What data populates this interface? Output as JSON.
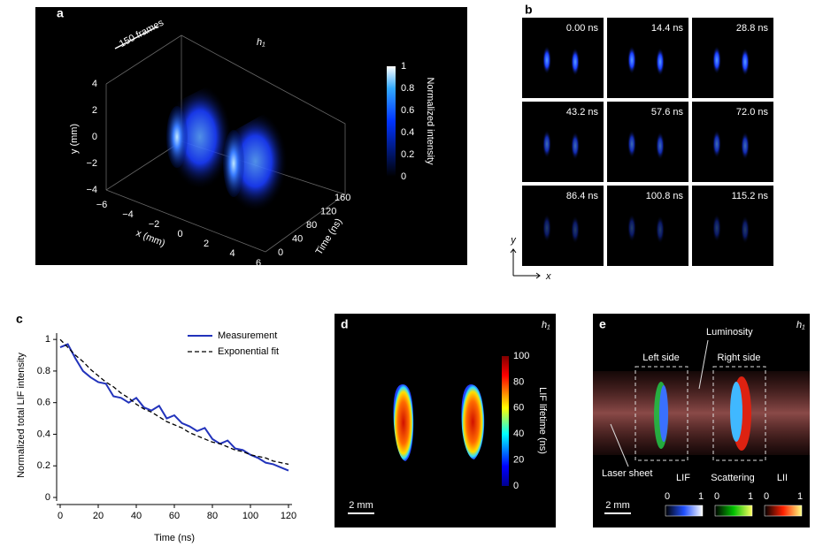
{
  "panel_a": {
    "label": "a",
    "frames": "150 frames",
    "h": "h₁",
    "y_label": "y (mm)",
    "x_label": "x (mm)",
    "t_label": "Time (ns)",
    "y_ticks": [
      "4",
      "2",
      "0",
      "−2",
      "−4"
    ],
    "x_ticks": [
      "−6",
      "−4",
      "−2",
      "0",
      "2",
      "4",
      "6"
    ],
    "t_ticks": [
      "0",
      "40",
      "80",
      "120",
      "160"
    ],
    "colorbar_label": "Normalized intensity",
    "colorbar_ticks": [
      "1",
      "0.8",
      "0.6",
      "0.4",
      "0.2",
      "0"
    ]
  },
  "panel_b": {
    "label": "b",
    "frames": [
      "0.00 ns",
      "14.4 ns",
      "28.8 ns",
      "43.2 ns",
      "57.6 ns",
      "72.0 ns",
      "86.4 ns",
      "100.8 ns",
      "115.2 ns"
    ],
    "y": "y",
    "x": "x"
  },
  "panel_d": {
    "label": "d",
    "h": "h₁",
    "scale": "2 mm",
    "colorbar_label": "LIF lifetime (ns)",
    "colorbar_ticks": [
      "100",
      "80",
      "60",
      "40",
      "20",
      "0"
    ]
  },
  "panel_e": {
    "label": "e",
    "h": "h₁",
    "luminosity": "Luminosity",
    "left": "Left side",
    "right": "Right side",
    "laser": "Laser sheet",
    "scale": "2 mm",
    "bars": [
      {
        "name": "LIF",
        "min": "0",
        "max": "1"
      },
      {
        "name": "Scattering",
        "min": "0",
        "max": "1"
      },
      {
        "name": "LII",
        "min": "0",
        "max": "1"
      }
    ]
  },
  "chart_data": {
    "type": "line",
    "label": "c",
    "xlabel": "Time (ns)",
    "ylabel": "Normalized total LIF intensity",
    "x": [
      0,
      4,
      8,
      12,
      16,
      20,
      24,
      28,
      32,
      36,
      40,
      44,
      48,
      52,
      56,
      60,
      64,
      68,
      72,
      76,
      80,
      84,
      88,
      92,
      96,
      100,
      104,
      108,
      112,
      116,
      120
    ],
    "series": [
      {
        "name": "Measurement",
        "color": "#2233bb",
        "dash": false,
        "values": [
          0.95,
          0.97,
          0.88,
          0.8,
          0.76,
          0.73,
          0.72,
          0.64,
          0.63,
          0.6,
          0.63,
          0.57,
          0.55,
          0.58,
          0.5,
          0.52,
          0.47,
          0.45,
          0.42,
          0.44,
          0.37,
          0.34,
          0.36,
          0.31,
          0.3,
          0.27,
          0.25,
          0.22,
          0.21,
          0.19,
          0.17
        ]
      },
      {
        "name": "Exponential fit",
        "color": "#000000",
        "dash": true,
        "values": [
          1.0,
          0.95,
          0.9,
          0.86,
          0.81,
          0.77,
          0.73,
          0.7,
          0.66,
          0.63,
          0.59,
          0.56,
          0.54,
          0.51,
          0.48,
          0.46,
          0.44,
          0.41,
          0.39,
          0.37,
          0.35,
          0.34,
          0.32,
          0.3,
          0.29,
          0.27,
          0.26,
          0.25,
          0.23,
          0.22,
          0.21
        ]
      }
    ],
    "xlim": [
      0,
      120
    ],
    "ylim": [
      0,
      1.04
    ],
    "xticks": [
      0,
      20,
      40,
      60,
      80,
      100,
      120
    ],
    "yticks": [
      0,
      0.2,
      0.4,
      0.6,
      0.8,
      1
    ]
  }
}
